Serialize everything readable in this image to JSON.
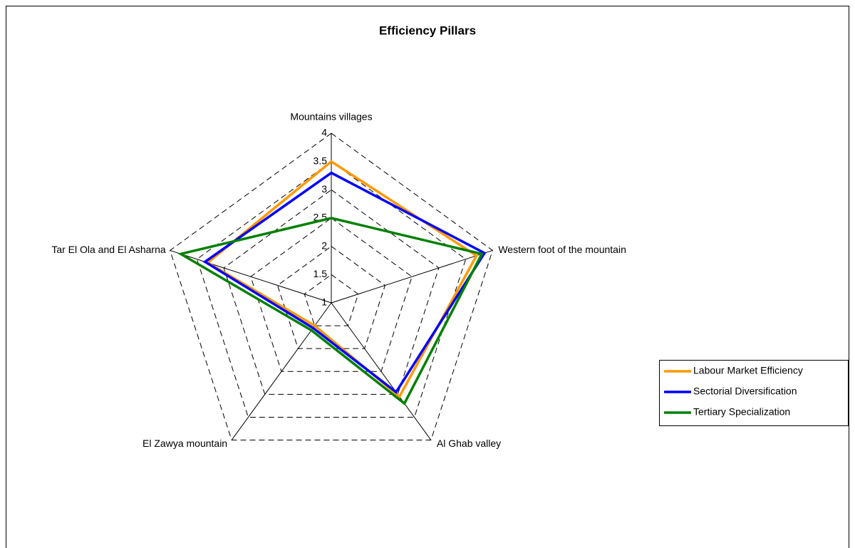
{
  "chart_data": {
    "type": "radar",
    "title": "Efficiency Pillars",
    "categories": [
      "Mountains villages",
      "Western foot of the mountain",
      "Al Ghab valley",
      "El Zawya mountain",
      "Tar El Ola and El Asharna"
    ],
    "series": [
      {
        "name": "Labour Market Efficiency",
        "color": "#ff9900",
        "values": [
          3.5,
          3.7,
          3.05,
          1.5,
          3.3
        ]
      },
      {
        "name": "Sectorial Diversification",
        "color": "#0000ff",
        "values": [
          3.3,
          3.85,
          2.95,
          1.55,
          3.35
        ]
      },
      {
        "name": "Tertiary Specialization",
        "color": "#008000",
        "values": [
          2.5,
          3.8,
          3.2,
          1.6,
          3.8
        ]
      }
    ],
    "rlim": [
      1,
      4
    ],
    "rticks": [
      1,
      1.5,
      2,
      2.5,
      3,
      3.5,
      4
    ],
    "grid": true,
    "legend": "right"
  }
}
